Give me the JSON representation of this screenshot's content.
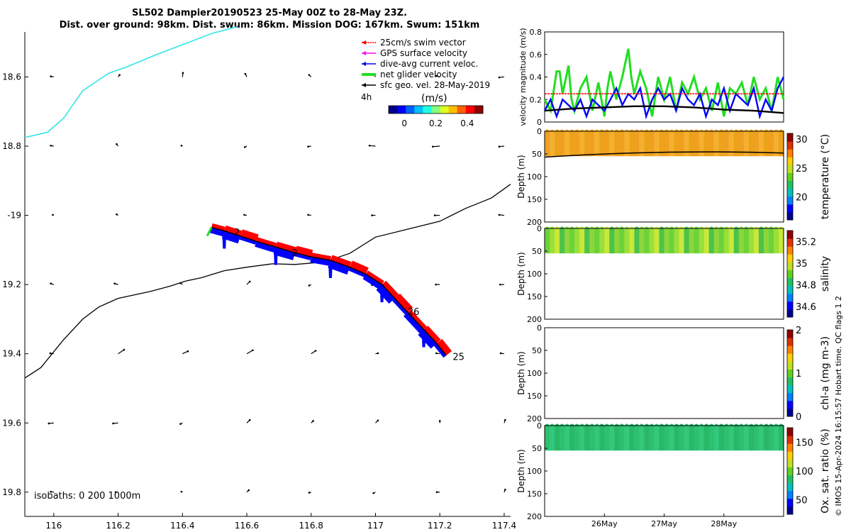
{
  "title_line1": "SL502 Dampier20190523 25-May 00Z to 28-May 23Z.",
  "title_line2": "Dist. over ground: 98km. Dist. swum: 86km. Mission DOG: 167km. Swum: 151km",
  "side_note": "© IMOS 15-Apr-2024 16:15:57 Hobart time. QC flags 1  2",
  "colors": {
    "swim_vector": "#ff0000",
    "gps_velocity": "#ff00ff",
    "dive_avg_current": "#0000ff",
    "net_glider_velocity": "#22dd22",
    "sfc_geo_vel": "#000000",
    "track_cyan": "#33e6e6",
    "isobath": "#000000"
  },
  "chart_data": [
    {
      "type": "map",
      "id": "track_map",
      "xlim": [
        115.91,
        117.42
      ],
      "ylim": [
        -19.87,
        -18.47
      ],
      "xticks": [
        116,
        116.2,
        116.4,
        116.6,
        116.8,
        117,
        117.2,
        117.4
      ],
      "xtick_labels": [
        "116",
        "116.2",
        "116.4",
        "116.6",
        "116.8",
        "117",
        "117.2",
        "117.4"
      ],
      "yticks": [
        -18.6,
        -18.8,
        -19.0,
        -19.2,
        -19.4,
        -19.6,
        -19.8
      ],
      "ytick_labels": [
        "18.6",
        "18.8",
        "-19",
        "19.2",
        "19.4",
        "19.6",
        "19.8"
      ],
      "legend": {
        "position": "top-right",
        "items": [
          {
            "label": "25cm/s swim vector",
            "color": "#ff0000",
            "style": "arrow"
          },
          {
            "label": "GPS surface velocity",
            "color": "#ff00ff",
            "style": "arrow"
          },
          {
            "label": "dive-avg current veloc.",
            "color": "#0000ff",
            "style": "arrow"
          },
          {
            "label": "net glider velocity",
            "color": "#22dd22",
            "style": "thick"
          },
          {
            "label": "sfc geo. vel. 28-May-2019",
            "color": "#000000",
            "style": "arrow"
          }
        ]
      },
      "colorbar": {
        "label": "(m/s)",
        "range": [
          -0.1,
          0.5
        ],
        "ticks": [
          0,
          0.2,
          0.4
        ],
        "tick_labels": [
          "0",
          "0.2",
          "0.4"
        ],
        "age_label": "4h"
      },
      "isobath_label": "isobaths: 0   200  1000m",
      "cyan_line": [
        [
          115.91,
          -18.775
        ],
        [
          115.98,
          -18.76
        ],
        [
          116.03,
          -18.72
        ],
        [
          116.09,
          -18.64
        ],
        [
          116.17,
          -18.59
        ],
        [
          116.23,
          -18.57
        ],
        [
          116.32,
          -18.535
        ],
        [
          116.42,
          -18.5
        ],
        [
          116.49,
          -18.475
        ],
        [
          116.57,
          -18.455
        ]
      ],
      "black_line": [
        [
          115.91,
          -19.47
        ],
        [
          115.96,
          -19.44
        ],
        [
          116.03,
          -19.36
        ],
        [
          116.09,
          -19.3
        ],
        [
          116.14,
          -19.265
        ],
        [
          116.2,
          -19.24
        ],
        [
          116.3,
          -19.22
        ],
        [
          116.36,
          -19.205
        ],
        [
          116.41,
          -19.19
        ],
        [
          116.46,
          -19.18
        ],
        [
          116.53,
          -19.16
        ],
        [
          116.6,
          -19.15
        ],
        [
          116.68,
          -19.14
        ],
        [
          116.75,
          -19.142
        ],
        [
          116.84,
          -19.135
        ],
        [
          116.92,
          -19.11
        ],
        [
          117.0,
          -19.063
        ],
        [
          117.1,
          -19.04
        ],
        [
          117.2,
          -19.017
        ],
        [
          117.28,
          -18.98
        ],
        [
          117.36,
          -18.95
        ],
        [
          117.42,
          -18.91
        ]
      ],
      "glider_track": [
        [
          116.49,
          -19.035
        ],
        [
          116.53,
          -19.045
        ],
        [
          116.58,
          -19.06
        ],
        [
          116.63,
          -19.075
        ],
        [
          116.69,
          -19.092
        ],
        [
          116.75,
          -19.108
        ],
        [
          116.8,
          -19.12
        ],
        [
          116.86,
          -19.13
        ],
        [
          116.92,
          -19.15
        ],
        [
          116.97,
          -19.17
        ],
        [
          117.02,
          -19.2
        ],
        [
          117.06,
          -19.24
        ],
        [
          117.1,
          -19.28
        ],
        [
          117.15,
          -19.33
        ],
        [
          117.19,
          -19.37
        ],
        [
          117.22,
          -19.405
        ]
      ],
      "day_labels": [
        {
          "text": "25",
          "lon": 117.24,
          "lat": -19.41
        },
        {
          "text": "26",
          "lon": 117.1,
          "lat": -19.28
        },
        {
          "text": "2",
          "lon": 116.74,
          "lat": -19.11
        },
        {
          "text": "2",
          "lon": 116.56,
          "lat": -19.05
        }
      ],
      "sfc_vectors": [
        {
          "lon": 116,
          "lat": -18.6,
          "u": -0.3,
          "v": 0.05
        },
        {
          "lon": 116.2,
          "lat": -18.6,
          "u": 0.15,
          "v": 0.2
        },
        {
          "lon": 116.4,
          "lat": -18.6,
          "u": 0.05,
          "v": 0.4
        },
        {
          "lon": 116.6,
          "lat": -18.6,
          "u": -0.15,
          "v": 0.3
        },
        {
          "lon": 116.8,
          "lat": -18.6,
          "u": -0.2,
          "v": 0.2
        },
        {
          "lon": 117,
          "lat": -18.6,
          "u": -0.2,
          "v": 0.25
        },
        {
          "lon": 117.2,
          "lat": -18.6,
          "u": -0.35,
          "v": 0.1
        },
        {
          "lon": 117.4,
          "lat": -18.6,
          "u": -0.5,
          "v": -0.05
        },
        {
          "lon": 116,
          "lat": -18.8,
          "u": -0.3,
          "v": 0.05
        },
        {
          "lon": 116.2,
          "lat": -18.8,
          "u": -0.15,
          "v": 0.2
        },
        {
          "lon": 116.4,
          "lat": -18.8,
          "u": -0.1,
          "v": 0.05
        },
        {
          "lon": 116.6,
          "lat": -18.8,
          "u": -0.2,
          "v": -0.1
        },
        {
          "lon": 116.8,
          "lat": -18.8,
          "u": -0.3,
          "v": -0.05
        },
        {
          "lon": 117,
          "lat": -18.8,
          "u": -0.6,
          "v": 0.05
        },
        {
          "lon": 117.2,
          "lat": -18.8,
          "u": -0.7,
          "v": -0.05
        },
        {
          "lon": 117.4,
          "lat": -18.8,
          "u": -0.5,
          "v": -0.05
        },
        {
          "lon": 116,
          "lat": -19,
          "u": -0.1,
          "v": 0.05
        },
        {
          "lon": 116.2,
          "lat": -19,
          "u": -0.15,
          "v": 0.1
        },
        {
          "lon": 116.6,
          "lat": -19,
          "u": -0.25,
          "v": 0.05
        },
        {
          "lon": 116.8,
          "lat": -19,
          "u": -0.3,
          "v": 0.05
        },
        {
          "lon": 117,
          "lat": -19,
          "u": -0.35,
          "v": 0
        },
        {
          "lon": 117.2,
          "lat": -19,
          "u": -0.5,
          "v": 0
        },
        {
          "lon": 117.4,
          "lat": -19,
          "u": -0.5,
          "v": 0.05
        },
        {
          "lon": 116,
          "lat": -19.2,
          "u": -0.3,
          "v": 0.1
        },
        {
          "lon": 116.2,
          "lat": -19.2,
          "u": -0.35,
          "v": 0.1
        },
        {
          "lon": 116.4,
          "lat": -19.2,
          "u": -0.2,
          "v": 0.15
        },
        {
          "lon": 116.6,
          "lat": -19.2,
          "u": 0.3,
          "v": 0.3
        },
        {
          "lon": 116.8,
          "lat": -19.2,
          "u": -0.2,
          "v": -0.1
        },
        {
          "lon": 117,
          "lat": -19.2,
          "u": -0.35,
          "v": -0.05
        },
        {
          "lon": 117.2,
          "lat": -19.2,
          "u": -0.4,
          "v": 0
        },
        {
          "lon": 117.4,
          "lat": -19.2,
          "u": -0.4,
          "v": 0
        },
        {
          "lon": 116,
          "lat": -19.4,
          "u": -0.35,
          "v": 0.05
        },
        {
          "lon": 116.2,
          "lat": -19.4,
          "u": 0.6,
          "v": 0.4
        },
        {
          "lon": 116.4,
          "lat": -19.4,
          "u": 0.55,
          "v": 0.25
        },
        {
          "lon": 116.6,
          "lat": -19.4,
          "u": 0.6,
          "v": 0.35
        },
        {
          "lon": 116.8,
          "lat": -19.4,
          "u": 0.45,
          "v": 0.3
        },
        {
          "lon": 117,
          "lat": -19.4,
          "u": 0.25,
          "v": 0.05
        },
        {
          "lon": 117.2,
          "lat": -19.4,
          "u": -0.35,
          "v": 0.05
        },
        {
          "lon": 117.4,
          "lat": -19.4,
          "u": -0.35,
          "v": 0.05
        },
        {
          "lon": 116,
          "lat": -19.6,
          "u": -0.5,
          "v": -0.05
        },
        {
          "lon": 116.2,
          "lat": -19.6,
          "u": -0.5,
          "v": -0.05
        },
        {
          "lon": 116.4,
          "lat": -19.6,
          "u": -0.2,
          "v": -0.1
        },
        {
          "lon": 116.6,
          "lat": -19.6,
          "u": 0.3,
          "v": 0.3
        },
        {
          "lon": 116.8,
          "lat": -19.6,
          "u": 0.2,
          "v": 0.2
        },
        {
          "lon": 117,
          "lat": -19.6,
          "u": 0.25,
          "v": 0.25
        },
        {
          "lon": 117.2,
          "lat": -19.6,
          "u": 0,
          "v": 0.2
        },
        {
          "lon": 117.4,
          "lat": -19.6,
          "u": 0.1,
          "v": 0.3
        },
        {
          "lon": 116,
          "lat": -19.8,
          "u": -0.3,
          "v": 0.05
        },
        {
          "lon": 116.2,
          "lat": -19.8,
          "u": -0.25,
          "v": 0
        },
        {
          "lon": 116.4,
          "lat": -19.8,
          "u": -0.1,
          "v": 0.05
        },
        {
          "lon": 116.6,
          "lat": -19.8,
          "u": 0.2,
          "v": 0.2
        },
        {
          "lon": 116.8,
          "lat": -19.8,
          "u": -0.2,
          "v": -0.05
        },
        {
          "lon": 117,
          "lat": -19.8,
          "u": -0.2,
          "v": -0.1
        },
        {
          "lon": 117.2,
          "lat": -19.8,
          "u": -0.3,
          "v": 0
        },
        {
          "lon": 117.4,
          "lat": -19.8,
          "u": 0.1,
          "v": 0.25
        }
      ]
    },
    {
      "type": "line",
      "id": "velocity_panel",
      "ylabel": "velocity magnitude (m/s)",
      "ylim": [
        0,
        0.8
      ],
      "yticks": [
        0,
        0.2,
        0.4,
        0.6,
        0.8
      ],
      "ytick_labels": [
        "0",
        "0.2",
        "0.4",
        "0.6",
        "0.8"
      ],
      "xlim": [
        0,
        4
      ],
      "series": [
        {
          "name": "net glider velocity",
          "color": "#22dd22",
          "x": [
            0,
            0.1,
            0.2,
            0.25,
            0.3,
            0.4,
            0.45,
            0.5,
            0.6,
            0.7,
            0.8,
            0.9,
            1.0,
            1.05,
            1.1,
            1.2,
            1.3,
            1.4,
            1.45,
            1.5,
            1.6,
            1.7,
            1.8,
            1.9,
            2.0,
            2.1,
            2.2,
            2.3,
            2.4,
            2.5,
            2.6,
            2.7,
            2.8,
            2.9,
            3.0,
            3.1,
            3.2,
            3.3,
            3.4,
            3.5,
            3.6,
            3.7,
            3.8,
            3.9,
            4.0
          ],
          "values": [
            0.2,
            0.1,
            0.45,
            0.45,
            0.25,
            0.5,
            0.2,
            0.1,
            0.3,
            0.4,
            0.1,
            0.35,
            0.05,
            0.3,
            0.45,
            0.2,
            0.4,
            0.65,
            0.4,
            0.25,
            0.45,
            0.3,
            0.05,
            0.4,
            0.2,
            0.4,
            0.1,
            0.35,
            0.25,
            0.4,
            0.2,
            0.3,
            0.1,
            0.35,
            0.05,
            0.3,
            0.25,
            0.35,
            0.15,
            0.4,
            0.2,
            0.3,
            0.1,
            0.4,
            0.2
          ]
        },
        {
          "name": "dive-avg current veloc.",
          "color": "#0000ff",
          "x": [
            0,
            0.1,
            0.2,
            0.3,
            0.4,
            0.5,
            0.6,
            0.7,
            0.8,
            0.9,
            1.0,
            1.1,
            1.2,
            1.3,
            1.4,
            1.5,
            1.6,
            1.7,
            1.8,
            1.9,
            2.0,
            2.1,
            2.2,
            2.3,
            2.4,
            2.5,
            2.6,
            2.7,
            2.8,
            2.9,
            3.0,
            3.1,
            3.2,
            3.3,
            3.4,
            3.5,
            3.6,
            3.7,
            3.8,
            3.9,
            4.0
          ],
          "values": [
            0.1,
            0.2,
            0.05,
            0.2,
            0.15,
            0.1,
            0.2,
            0.05,
            0.2,
            0.15,
            0.1,
            0.2,
            0.3,
            0.15,
            0.25,
            0.2,
            0.3,
            0.05,
            0.2,
            0.3,
            0.2,
            0.25,
            0.1,
            0.3,
            0.2,
            0.15,
            0.25,
            0.05,
            0.2,
            0.15,
            0.3,
            0.1,
            0.25,
            0.2,
            0.15,
            0.3,
            0.05,
            0.2,
            0.1,
            0.3,
            0.4
          ]
        },
        {
          "name": "25cm/s swim vector",
          "color": "#ff0000",
          "x": [
            0,
            4
          ],
          "values": [
            0.25,
            0.25
          ]
        },
        {
          "name": "sfc geo. vel.",
          "color": "#000000",
          "x": [
            0,
            0.5,
            1,
            1.5,
            2,
            2.5,
            3,
            3.5,
            4
          ],
          "values": [
            0.1,
            0.12,
            0.13,
            0.14,
            0.14,
            0.13,
            0.11,
            0.1,
            0.08
          ]
        }
      ]
    },
    {
      "type": "heatmap",
      "id": "temperature_panel",
      "ylabel": "Depth (m)",
      "yticks": [
        0,
        50,
        100,
        150,
        200
      ],
      "ytick_labels": [
        "0",
        "50",
        "100",
        "150",
        "200"
      ],
      "ylim": [
        200,
        0
      ],
      "data_depth": [
        0,
        55
      ],
      "colorbar_label": "temperature (°C)",
      "colorbar_range": [
        16,
        31
      ],
      "colorbar_ticks": [
        20,
        25,
        30
      ],
      "colorbar_tick_labels": [
        "20",
        "25",
        "30"
      ],
      "fill_value": 28.5,
      "fill_colors": [
        "#f0a020",
        "#f5b030",
        "#eca21a"
      ],
      "has_bottom_line": true
    },
    {
      "type": "heatmap",
      "id": "salinity_panel",
      "ylabel": "Depth (m)",
      "yticks": [
        0,
        50,
        100,
        150,
        200
      ],
      "ytick_labels": [
        "0",
        "50",
        "100",
        "150",
        "200"
      ],
      "ylim": [
        200,
        0
      ],
      "data_depth": [
        0,
        55
      ],
      "colorbar_label": "salinity",
      "colorbar_range": [
        34.5,
        35.3
      ],
      "colorbar_ticks": [
        34.6,
        34.8,
        35,
        35.2
      ],
      "colorbar_tick_labels": [
        "34.6",
        "34.8",
        "35",
        "35.2"
      ],
      "fill_value": 35.0,
      "fill_colors": [
        "#6cd23a",
        "#9adf3a",
        "#c8e83a",
        "#4cc24a",
        "#8cd63c"
      ],
      "has_bottom_line": false
    },
    {
      "type": "heatmap",
      "id": "chla_panel",
      "ylabel": "Depth (m)",
      "yticks": [
        0,
        50,
        100,
        150,
        200
      ],
      "ytick_labels": [
        "0",
        "50",
        "100",
        "150",
        "200"
      ],
      "ylim": [
        200,
        0
      ],
      "data_depth": [
        0,
        0
      ],
      "colorbar_label": "chl-a (mg m-3)",
      "colorbar_range": [
        0,
        2
      ],
      "colorbar_ticks": [
        0,
        1,
        2
      ],
      "colorbar_tick_labels": [
        "0",
        "1",
        "2"
      ],
      "fill_colors": [],
      "has_bottom_line": false
    },
    {
      "type": "heatmap",
      "id": "oxygen_panel",
      "ylabel": "Depth (m)",
      "yticks": [
        0,
        50,
        100,
        150,
        200
      ],
      "ytick_labels": [
        "0",
        "50",
        "100",
        "150",
        "200"
      ],
      "ylim": [
        200,
        0
      ],
      "data_depth": [
        0,
        55
      ],
      "colorbar_label": "Ox. sat. ratio (%)",
      "colorbar_range": [
        25,
        175
      ],
      "colorbar_ticks": [
        50,
        100,
        150
      ],
      "colorbar_tick_labels": [
        "50",
        "100",
        "150"
      ],
      "fill_value": 100,
      "fill_colors": [
        "#2cc070",
        "#34c87c",
        "#28b868"
      ],
      "has_bottom_line": false,
      "xticks": [
        1,
        2,
        3
      ],
      "xtick_labels": [
        "26May",
        "27May",
        "28May"
      ],
      "xlim": [
        0,
        4
      ]
    }
  ]
}
